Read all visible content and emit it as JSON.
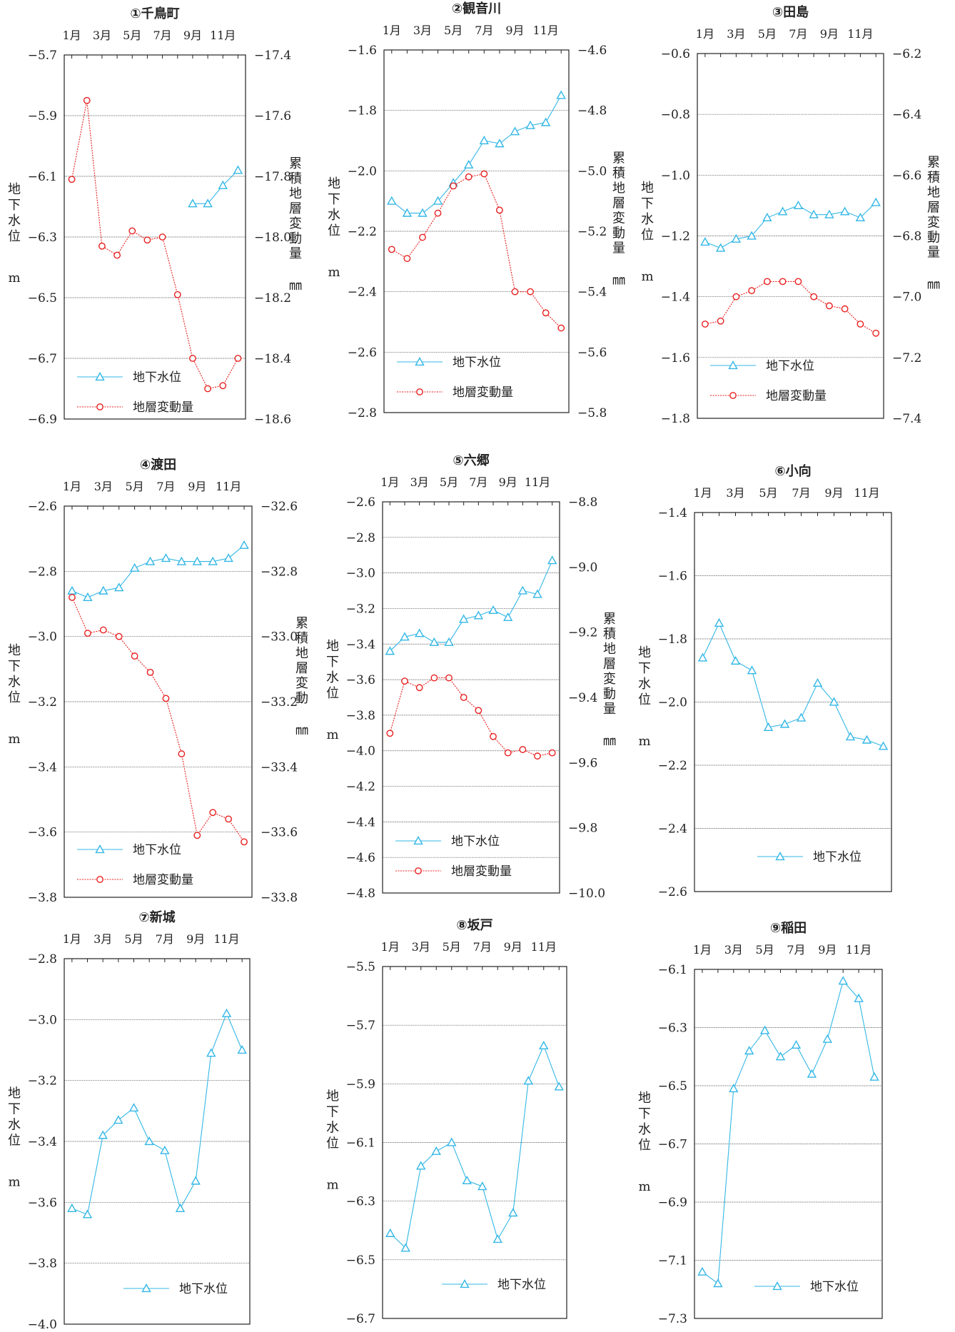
{
  "chart_data": [
    {
      "type": "line",
      "title": "①千鳥町",
      "x": [
        "1月",
        "2月",
        "3月",
        "4月",
        "5月",
        "6月",
        "7月",
        "8月",
        "9月",
        "10月",
        "11月",
        "12月"
      ],
      "xticklabels": [
        "1月",
        "3月",
        "5月",
        "7月",
        "9月",
        "11月"
      ],
      "left": {
        "ylabel": [
          "地",
          "下",
          "水",
          "位"
        ],
        "unit": "m",
        "ylim": [
          -6.9,
          -5.7
        ],
        "ticks": [
          -6.9,
          -6.7,
          -6.5,
          -6.3,
          -6.1,
          -5.9,
          -5.7
        ]
      },
      "right": {
        "ylabel": [
          "累",
          "積",
          "地",
          "層",
          "変",
          "動",
          "量"
        ],
        "unit": "㎜",
        "ylim": [
          -18.6,
          -17.4
        ],
        "ticks": [
          -18.6,
          -18.4,
          -18.2,
          -18.0,
          -17.8,
          -17.6,
          -17.4
        ]
      },
      "series": [
        {
          "name": "地下水位",
          "axis": "left",
          "color": "#33b7e6",
          "marker": "triangle",
          "values": [
            null,
            null,
            null,
            null,
            null,
            null,
            null,
            null,
            -6.19,
            -6.19,
            -6.13,
            -6.08
          ]
        },
        {
          "name": "地層変動量",
          "axis": "right",
          "color": "#e82020",
          "marker": "circle",
          "values": [
            -17.81,
            -17.55,
            -18.03,
            -18.06,
            -17.98,
            -18.01,
            -18.0,
            -18.19,
            -18.4,
            -18.5,
            -18.49,
            -18.4
          ]
        }
      ]
    },
    {
      "type": "line",
      "title": "②観音川",
      "x": [
        "1月",
        "2月",
        "3月",
        "4月",
        "5月",
        "6月",
        "7月",
        "8月",
        "9月",
        "10月",
        "11月",
        "12月"
      ],
      "xticklabels": [
        "1月",
        "3月",
        "5月",
        "7月",
        "9月",
        "11月"
      ],
      "left": {
        "ylabel": [
          "地",
          "下",
          "水",
          "位"
        ],
        "unit": "m",
        "ylim": [
          -2.8,
          -1.6
        ],
        "ticks": [
          -2.8,
          -2.6,
          -2.4,
          -2.2,
          -2.0,
          -1.8,
          -1.6
        ]
      },
      "right": {
        "ylabel": [
          "累",
          "積",
          "地",
          "層",
          "変",
          "動",
          "量"
        ],
        "unit": "㎜",
        "ylim": [
          -5.8,
          -4.6
        ],
        "ticks": [
          -5.8,
          -5.6,
          -5.4,
          -5.2,
          -5.0,
          -4.8,
          -4.6
        ]
      },
      "series": [
        {
          "name": "地下水位",
          "axis": "left",
          "color": "#33b7e6",
          "marker": "triangle",
          "values": [
            -2.1,
            -2.14,
            -2.14,
            -2.1,
            -2.04,
            -1.98,
            -1.9,
            -1.91,
            -1.87,
            -1.85,
            -1.84,
            -1.75
          ]
        },
        {
          "name": "地層変動量",
          "axis": "right",
          "color": "#e82020",
          "marker": "circle",
          "values": [
            -5.26,
            -5.29,
            -5.22,
            -5.14,
            -5.05,
            -5.02,
            -5.01,
            -5.13,
            -5.4,
            -5.4,
            -5.47,
            -5.52
          ]
        }
      ]
    },
    {
      "type": "line",
      "title": "③田島",
      "x": [
        "1月",
        "2月",
        "3月",
        "4月",
        "5月",
        "6月",
        "7月",
        "8月",
        "9月",
        "10月",
        "11月",
        "12月"
      ],
      "xticklabels": [
        "1月",
        "3月",
        "5月",
        "7月",
        "9月",
        "11月"
      ],
      "left": {
        "ylabel": [
          "地",
          "下",
          "水",
          "位"
        ],
        "unit": "m",
        "ylim": [
          -1.8,
          -0.6
        ],
        "ticks": [
          -1.8,
          -1.6,
          -1.4,
          -1.2,
          -1.0,
          -0.8,
          -0.6
        ]
      },
      "right": {
        "ylabel": [
          "累",
          "積",
          "地",
          "層",
          "変",
          "動",
          "量"
        ],
        "unit": "㎜",
        "ylim": [
          -7.4,
          -6.2
        ],
        "ticks": [
          -7.4,
          -7.2,
          -7.0,
          -6.8,
          -6.6,
          -6.4,
          -6.2
        ]
      },
      "series": [
        {
          "name": "地下水位",
          "axis": "left",
          "color": "#33b7e6",
          "marker": "triangle",
          "values": [
            -1.22,
            -1.24,
            -1.21,
            -1.2,
            -1.14,
            -1.12,
            -1.1,
            -1.13,
            -1.13,
            -1.12,
            -1.14,
            -1.09
          ]
        },
        {
          "name": "地層変動量",
          "axis": "right",
          "color": "#e82020",
          "marker": "circle",
          "values": [
            -7.09,
            -7.08,
            -7.0,
            -6.98,
            -6.95,
            -6.95,
            -6.95,
            -7.0,
            -7.03,
            -7.04,
            -7.09,
            -7.12
          ]
        }
      ]
    },
    {
      "type": "line",
      "title": "④渡田",
      "x": [
        "1月",
        "2月",
        "3月",
        "4月",
        "5月",
        "6月",
        "7月",
        "8月",
        "9月",
        "10月",
        "11月",
        "12月"
      ],
      "xticklabels": [
        "1月",
        "3月",
        "5月",
        "7月",
        "9月",
        "11月"
      ],
      "left": {
        "ylabel": [
          "地",
          "下",
          "水",
          "位"
        ],
        "unit": "m",
        "ylim": [
          -3.8,
          -2.6
        ],
        "ticks": [
          -3.8,
          -3.6,
          -3.4,
          -3.2,
          -3.0,
          -2.8,
          -2.6
        ]
      },
      "right": {
        "ylabel": [
          "累",
          "積",
          "地",
          "層",
          "変",
          "動"
        ],
        "unit": "㎜",
        "ylim": [
          -33.8,
          -32.6
        ],
        "ticks": [
          -33.8,
          -33.6,
          -33.4,
          -33.2,
          -33.0,
          -32.8,
          -32.6
        ]
      },
      "series": [
        {
          "name": "地下水位",
          "axis": "left",
          "color": "#33b7e6",
          "marker": "triangle",
          "values": [
            -2.86,
            -2.88,
            -2.86,
            -2.85,
            -2.79,
            -2.77,
            -2.76,
            -2.77,
            -2.77,
            -2.77,
            -2.76,
            -2.72
          ]
        },
        {
          "name": "地層変動量",
          "axis": "right",
          "color": "#e82020",
          "marker": "circle",
          "values": [
            -32.88,
            -32.99,
            -32.98,
            -33.0,
            -33.06,
            -33.11,
            -33.19,
            -33.36,
            -33.61,
            -33.54,
            -33.56,
            -33.63
          ]
        }
      ]
    },
    {
      "type": "line",
      "title": "⑤六郷",
      "x": [
        "1月",
        "2月",
        "3月",
        "4月",
        "5月",
        "6月",
        "7月",
        "8月",
        "9月",
        "10月",
        "11月",
        "12月"
      ],
      "xticklabels": [
        "1月",
        "3月",
        "5月",
        "7月",
        "9月",
        "11月"
      ],
      "left": {
        "ylabel": [
          "地",
          "下",
          "水",
          "位"
        ],
        "unit": "m",
        "ylim": [
          -4.8,
          -2.6
        ],
        "ticks": [
          -4.8,
          -4.6,
          -4.4,
          -4.2,
          -4.0,
          -3.8,
          -3.6,
          -3.4,
          -3.2,
          -3.0,
          -2.8,
          -2.6
        ]
      },
      "right": {
        "ylabel": [
          "累",
          "積",
          "地",
          "層",
          "変",
          "動",
          "量"
        ],
        "unit": "㎜",
        "ylim": [
          -10.0,
          -8.8
        ],
        "ticks": [
          -10.0,
          -9.8,
          -9.6,
          -9.4,
          -9.2,
          -9.0,
          -8.8
        ]
      },
      "series": [
        {
          "name": "地下水位",
          "axis": "left",
          "color": "#33b7e6",
          "marker": "triangle",
          "values": [
            -3.44,
            -3.36,
            -3.34,
            -3.39,
            -3.39,
            -3.26,
            -3.24,
            -3.21,
            -3.25,
            -3.1,
            -3.12,
            -2.93
          ]
        },
        {
          "name": "地層変動量",
          "axis": "right",
          "color": "#e82020",
          "marker": "circle",
          "values": [
            -9.51,
            -9.35,
            -9.37,
            -9.34,
            -9.34,
            -9.4,
            -9.44,
            -9.52,
            -9.57,
            -9.56,
            -9.58,
            -9.57
          ]
        }
      ]
    },
    {
      "type": "line",
      "title": "⑥小向",
      "x": [
        "1月",
        "2月",
        "3月",
        "4月",
        "5月",
        "6月",
        "7月",
        "8月",
        "9月",
        "10月",
        "11月",
        "12月"
      ],
      "xticklabels": [
        "1月",
        "3月",
        "5月",
        "7月",
        "9月",
        "11月"
      ],
      "left": {
        "ylabel": [
          "地",
          "下",
          "水",
          "位"
        ],
        "unit": "m",
        "ylim": [
          -2.6,
          -1.4
        ],
        "ticks": [
          -2.6,
          -2.4,
          -2.2,
          -2.0,
          -1.8,
          -1.6,
          -1.4
        ]
      },
      "series": [
        {
          "name": "地下水位",
          "axis": "left",
          "color": "#33b7e6",
          "marker": "triangle",
          "values": [
            -1.86,
            -1.75,
            -1.87,
            -1.9,
            -2.08,
            -2.07,
            -2.05,
            -1.94,
            -2.0,
            -2.11,
            -2.12,
            -2.14
          ]
        }
      ]
    },
    {
      "type": "line",
      "title": "⑦新城",
      "x": [
        "1月",
        "2月",
        "3月",
        "4月",
        "5月",
        "6月",
        "7月",
        "8月",
        "9月",
        "10月",
        "11月",
        "12月"
      ],
      "xticklabels": [
        "1月",
        "3月",
        "5月",
        "7月",
        "9月",
        "11月"
      ],
      "left": {
        "ylabel": [
          "地",
          "下",
          "水",
          "位"
        ],
        "unit": "m",
        "ylim": [
          -4.0,
          -2.8
        ],
        "ticks": [
          -4.0,
          -3.8,
          -3.6,
          -3.4,
          -3.2,
          -3.0,
          -2.8
        ]
      },
      "series": [
        {
          "name": "地下水位",
          "axis": "left",
          "color": "#33b7e6",
          "marker": "triangle",
          "values": [
            -3.62,
            -3.64,
            -3.38,
            -3.33,
            -3.29,
            -3.4,
            -3.43,
            -3.62,
            -3.53,
            -3.11,
            -2.98,
            -3.1
          ]
        }
      ]
    },
    {
      "type": "line",
      "title": "⑧坂戸",
      "x": [
        "1月",
        "2月",
        "3月",
        "4月",
        "5月",
        "6月",
        "7月",
        "8月",
        "9月",
        "10月",
        "11月",
        "12月"
      ],
      "xticklabels": [
        "1月",
        "3月",
        "5月",
        "7月",
        "9月",
        "11月"
      ],
      "left": {
        "ylabel": [
          "地",
          "下",
          "水",
          "位"
        ],
        "unit": "m",
        "ylim": [
          -6.7,
          -5.5
        ],
        "ticks": [
          -6.7,
          -6.5,
          -6.3,
          -6.1,
          -5.9,
          -5.7,
          -5.5
        ]
      },
      "series": [
        {
          "name": "地下水位",
          "axis": "left",
          "color": "#33b7e6",
          "marker": "triangle",
          "values": [
            -6.41,
            -6.46,
            -6.18,
            -6.13,
            -6.1,
            -6.23,
            -6.25,
            -6.43,
            -6.34,
            -5.89,
            -5.77,
            -5.91
          ]
        }
      ]
    },
    {
      "type": "line",
      "title": "⑨稲田",
      "x": [
        "1月",
        "2月",
        "3月",
        "4月",
        "5月",
        "6月",
        "7月",
        "8月",
        "9月",
        "10月",
        "11月",
        "12月"
      ],
      "xticklabels": [
        "1月",
        "3月",
        "5月",
        "7月",
        "9月",
        "11月"
      ],
      "left": {
        "ylabel": [
          "地",
          "下",
          "水",
          "位"
        ],
        "unit": "m",
        "ylim": [
          -7.3,
          -6.1
        ],
        "ticks": [
          -7.3,
          -7.1,
          -6.9,
          -6.7,
          -6.5,
          -6.3,
          -6.1
        ]
      },
      "series": [
        {
          "name": "地下水位",
          "axis": "left",
          "color": "#33b7e6",
          "marker": "triangle",
          "values": [
            -7.14,
            -7.18,
            -6.51,
            -6.38,
            -6.31,
            -6.4,
            -6.36,
            -6.46,
            -6.34,
            -6.14,
            -6.2,
            -6.47
          ]
        }
      ]
    }
  ]
}
